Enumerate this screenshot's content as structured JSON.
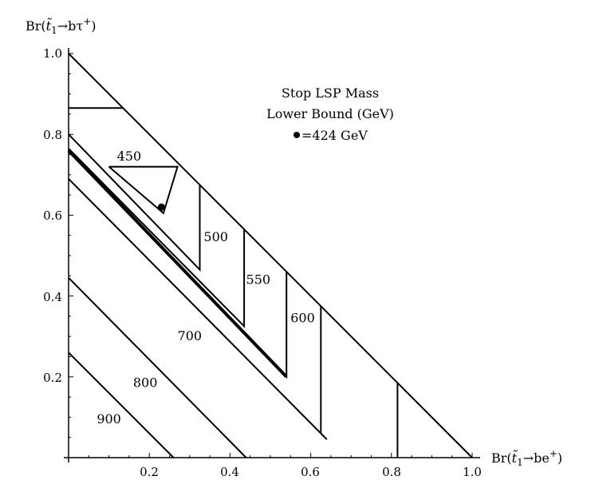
{
  "chart_data": {
    "type": "line",
    "xlabel_base": "Br(",
    "xlabel_sym": "t̃",
    "xlabel_sub": "1",
    "xlabel_rest": "→be",
    "xlabel_sup": "+",
    "xlabel_close": ")",
    "ylabel_base": "Br(",
    "ylabel_sym": "t̃",
    "ylabel_sub": "1",
    "ylabel_rest": "→bτ",
    "ylabel_sup": "+",
    "ylabel_close": ")",
    "xlim": [
      0,
      1
    ],
    "ylim": [
      0,
      1
    ],
    "x_ticks": [
      "0.2",
      "0.4",
      "0.6",
      "0.8",
      "1.0"
    ],
    "y_ticks": [
      "1.0",
      "0.8",
      "0.6",
      "0.4",
      "0.2"
    ],
    "annotation": {
      "line1": "Stop LSP Mass",
      "line2": "Lower Bound (GeV)",
      "point_text": "=424 GeV",
      "point": [
        0.23,
        0.62
      ]
    },
    "boundary": [
      [
        0,
        1
      ],
      [
        1,
        0
      ]
    ],
    "series": [
      {
        "label": "450",
        "points": [
          [
            0.1,
            0.72
          ],
          [
            0.27,
            0.72
          ],
          [
            0.235,
            0.605
          ],
          [
            0.1,
            0.72
          ]
        ],
        "label_pos": [
          0.15,
          0.745
        ]
      },
      {
        "label": "500",
        "points": [
          [
            0,
            0.8
          ],
          [
            0.325,
            0.465
          ],
          [
            0.325,
            0.675
          ]
        ],
        "label_pos": [
          0.365,
          0.545
        ]
      },
      {
        "label": "550",
        "points": [
          [
            0,
            0.765
          ],
          [
            0.435,
            0.325
          ],
          [
            0.435,
            0.565
          ]
        ],
        "label_pos": [
          0.47,
          0.44
        ]
      },
      {
        "label": "600",
        "points": [
          [
            0,
            0.76
          ],
          [
            0.54,
            0.2
          ],
          [
            0.54,
            0.46
          ]
        ],
        "label_pos": [
          0.58,
          0.345
        ],
        "thick_segment": 0
      },
      {
        "label": "700",
        "points": [
          [
            0,
            0.69
          ],
          [
            0.64,
            0.045
          ],
          [
            0.625,
            0.06
          ],
          [
            0.625,
            0.375
          ]
        ],
        "label_pos": [
          0.3,
          0.3
        ]
      },
      {
        "label": "",
        "points": [
          [
            0,
            0.865
          ],
          [
            0.135,
            0.865
          ]
        ]
      },
      {
        "label": "",
        "points": [
          [
            0.815,
            0
          ],
          [
            0.815,
            0.185
          ]
        ]
      },
      {
        "label": "800",
        "points": [
          [
            0,
            0.445
          ],
          [
            0.44,
            0
          ]
        ],
        "label_pos": [
          0.19,
          0.185
        ]
      },
      {
        "label": "900",
        "points": [
          [
            0,
            0.26
          ],
          [
            0.26,
            0
          ]
        ],
        "label_pos": [
          0.1,
          0.095
        ]
      }
    ]
  }
}
